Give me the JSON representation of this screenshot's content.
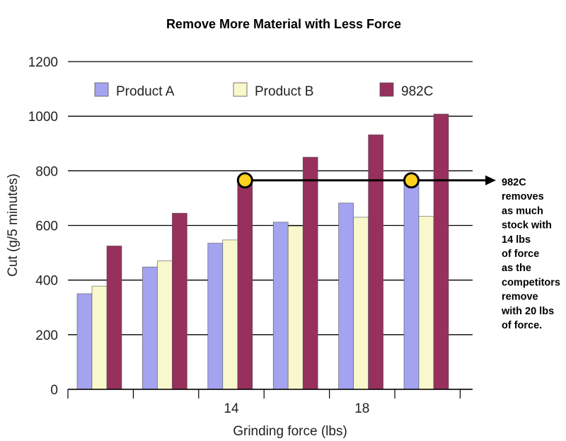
{
  "chart_data": {
    "type": "bar",
    "title": "Remove More Material with Less Force",
    "xlabel": "Grinding force (lbs)",
    "ylabel": "Cut (g/5 minutes)",
    "ylim": [
      0,
      1200
    ],
    "yticks": [
      "0",
      "200",
      "400",
      "600",
      "800",
      "1000",
      "1200"
    ],
    "categories": [
      "",
      "",
      "14",
      "",
      "18",
      ""
    ],
    "series": [
      {
        "name": "Product A",
        "color": "#a3a3f0",
        "values": [
          350,
          448,
          535,
          612,
          682,
          768
        ]
      },
      {
        "name": "Product B",
        "color": "#f8f8cc",
        "values": [
          378,
          470,
          547,
          598,
          630,
          633
        ]
      },
      {
        "name": "982C",
        "color": "#97305d",
        "values": [
          525,
          645,
          760,
          850,
          932,
          1008
        ]
      }
    ],
    "legend_position": "top",
    "grid": true,
    "annotation": {
      "line_value": 760,
      "marker_color": "#ffd21e",
      "marker_categories": [
        2,
        5
      ],
      "marker_series": [
        2,
        0
      ],
      "text_lines": [
        "982C",
        "removes",
        "as much",
        "stock with",
        "14 lbs",
        "of force",
        "as the",
        "competitors",
        "remove",
        "with 20 lbs",
        "of force."
      ]
    }
  }
}
